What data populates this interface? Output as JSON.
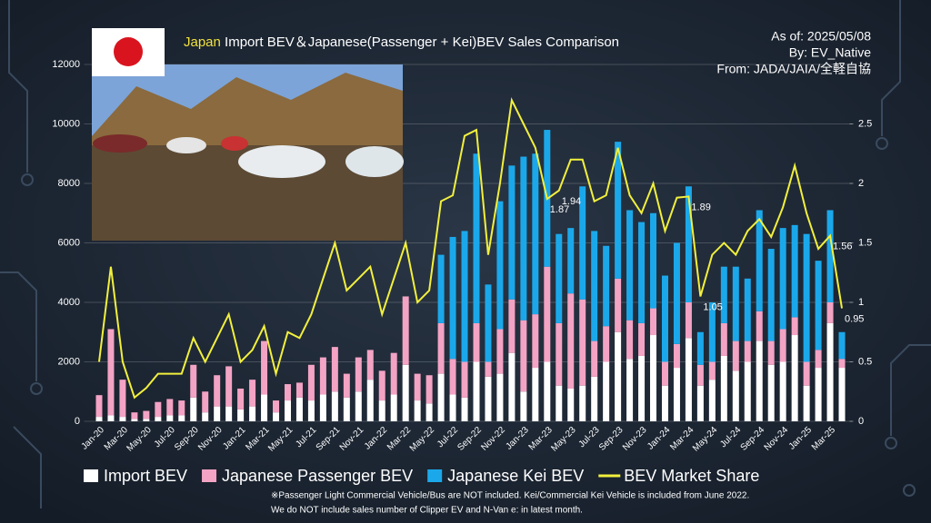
{
  "chart_data": {
    "type": "stacked-bar-line",
    "title_highlight": "Japan",
    "title": "Import BEV＆Japanese(Passenger + Kei)BEV Sales Comparison",
    "annotations": [
      "As of: 2025/05/08",
      "By: EV_Native",
      "From: JADA/JAIA/全軽自協"
    ],
    "notes": [
      "※Passenger Light Commercial Vehicle/Bus are NOT included. Kei/Commercial Kei Vehicle is included from June 2022.",
      "We do NOT include sales number of Clipper EV and N-Van e: in latest month."
    ],
    "categories": [
      "Jan-20",
      null,
      "Mar-20",
      null,
      "May-20",
      null,
      "Jul-20",
      null,
      "Sep-20",
      null,
      "Nov-20",
      null,
      "Jan-21",
      null,
      "Mar-21",
      null,
      "May-21",
      null,
      "Jul-21",
      null,
      "Sep-21",
      null,
      "Nov-21",
      null,
      "Jan-22",
      null,
      "Mar-22",
      null,
      "May-22",
      null,
      "Jul-22",
      null,
      "Sep-22",
      null,
      "Nov-22",
      null,
      "Jan-23",
      null,
      "Mar-23",
      null,
      "May-23",
      null,
      "Jul-23",
      null,
      "Sep-23",
      null,
      "Nov-23",
      null,
      "Jan-24",
      null,
      "Mar-24",
      null,
      "May-24",
      null,
      "Jul-24",
      null,
      "Sep-24",
      null,
      "Nov-24",
      null,
      "Jan-25",
      null,
      "Mar-25",
      null
    ],
    "series": [
      {
        "name": "Import BEV",
        "color": "#ffffff",
        "values": [
          150,
          200,
          150,
          80,
          80,
          150,
          200,
          200,
          800,
          300,
          500,
          500,
          400,
          500,
          900,
          300,
          700,
          800,
          700,
          900,
          1000,
          800,
          1000,
          1400,
          700,
          900,
          1900,
          700,
          600,
          1600,
          900,
          800,
          2000,
          1500,
          1600,
          2300,
          1000,
          1800,
          2000,
          1200,
          1100,
          1200,
          1500,
          2000,
          3000,
          2100,
          2200,
          2900,
          1200,
          1800,
          2800,
          1200,
          1400,
          2200,
          1700,
          2000,
          2700,
          1900,
          2000,
          2900,
          1200,
          1800,
          3300,
          1800
        ]
      },
      {
        "name": "Japanese Passenger BEV",
        "color": "#f3a3c4",
        "values": [
          730,
          2900,
          1250,
          220,
          270,
          500,
          550,
          500,
          1100,
          700,
          1050,
          1350,
          700,
          900,
          1800,
          400,
          550,
          500,
          1200,
          1250,
          1500,
          800,
          1150,
          1000,
          1000,
          1400,
          2300,
          900,
          950,
          1700,
          1200,
          1200,
          1300,
          500,
          1500,
          1800,
          2400,
          1800,
          3200,
          2100,
          3200,
          2900,
          1200,
          1200,
          1800,
          1300,
          1100,
          900,
          800,
          800,
          1200,
          700,
          600,
          1100,
          1000,
          700,
          1000,
          800,
          1100,
          600,
          800,
          600,
          700,
          300
        ]
      },
      {
        "name": "Japanese Kei BEV",
        "color": "#1ba8ea",
        "values": [
          null,
          null,
          null,
          null,
          null,
          null,
          null,
          null,
          null,
          null,
          null,
          null,
          null,
          null,
          null,
          null,
          null,
          null,
          null,
          null,
          null,
          null,
          null,
          null,
          null,
          null,
          null,
          null,
          null,
          2300,
          4100,
          4400,
          5700,
          2600,
          4300,
          4500,
          5500,
          5400,
          4600,
          3000,
          2200,
          3800,
          3700,
          2700,
          4600,
          3700,
          3400,
          3200,
          2900,
          3400,
          3900,
          1100,
          2000,
          1900,
          2500,
          2100,
          3400,
          3100,
          3400,
          3100,
          4300,
          3000,
          3100,
          900
        ]
      },
      {
        "name": "BEV Market Share",
        "color": "#f2f03c",
        "axis": "y2",
        "values": [
          0.5,
          1.3,
          0.5,
          0.2,
          0.28,
          0.4,
          0.4,
          0.4,
          0.7,
          0.5,
          0.7,
          0.9,
          0.5,
          0.6,
          0.8,
          0.4,
          0.75,
          0.7,
          0.9,
          1.2,
          1.5,
          1.1,
          1.2,
          1.3,
          0.9,
          1.2,
          1.5,
          1.0,
          1.1,
          1.85,
          1.9,
          2.4,
          2.45,
          1.4,
          2.0,
          2.7,
          2.5,
          2.3,
          1.87,
          1.94,
          2.2,
          2.2,
          1.85,
          1.9,
          2.3,
          1.9,
          1.75,
          2.0,
          1.6,
          1.88,
          1.89,
          1.05,
          1.4,
          1.5,
          1.4,
          1.6,
          1.7,
          1.55,
          1.8,
          2.15,
          1.75,
          1.45,
          1.56,
          0.95
        ],
        "value_labels": [
          null,
          null,
          null,
          null,
          null,
          null,
          null,
          null,
          null,
          null,
          null,
          null,
          null,
          null,
          null,
          null,
          null,
          null,
          null,
          null,
          null,
          null,
          null,
          null,
          null,
          null,
          null,
          null,
          null,
          null,
          null,
          null,
          null,
          null,
          null,
          null,
          null,
          null,
          "1.87",
          "1.94",
          null,
          null,
          null,
          null,
          null,
          null,
          null,
          null,
          null,
          null,
          "1.89",
          "1.05",
          null,
          null,
          null,
          null,
          null,
          null,
          null,
          null,
          null,
          null,
          "1.56",
          "0.95"
        ]
      }
    ],
    "ylim": [
      0,
      12000
    ],
    "yticks": [
      0,
      2000,
      4000,
      6000,
      8000,
      10000,
      12000
    ],
    "y2lim": [
      0,
      3
    ],
    "y2ticks": [
      0,
      0.5,
      1,
      1.5,
      2,
      2.5
    ],
    "grid": true
  }
}
